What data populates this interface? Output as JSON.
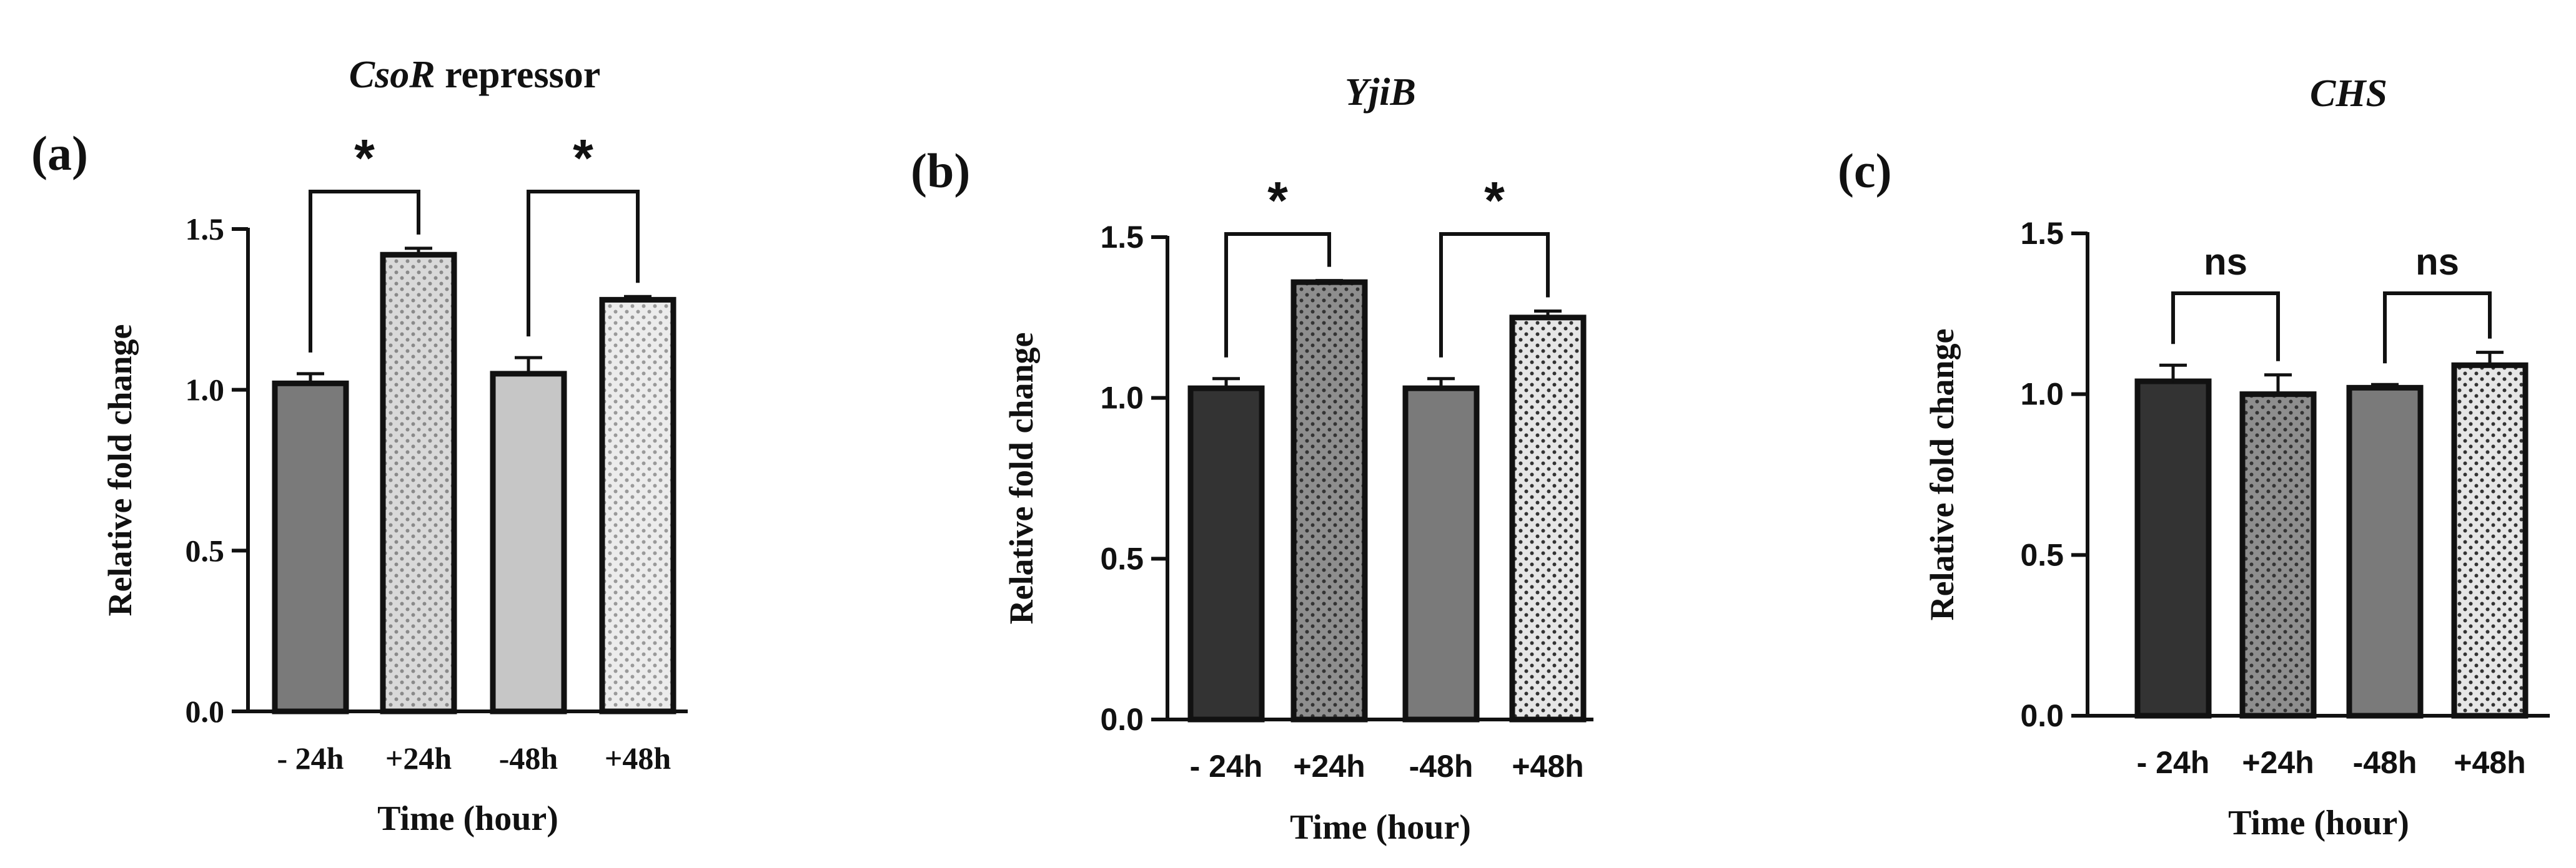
{
  "chart_data": [
    {
      "panel_label": "(a)",
      "type": "bar",
      "title_italic": "CsoR",
      "title_rest": " repressor",
      "xlabel": "Time (hour)",
      "ylabel": "Relative fold change",
      "ylim": [
        0,
        1.5
      ],
      "yticks": [
        "0.0",
        "0.5",
        "1.0",
        "1.5"
      ],
      "categories": [
        "- 24h",
        "+24h",
        "-48h",
        "+48h"
      ],
      "values": [
        1.02,
        1.42,
        1.05,
        1.28
      ],
      "errors": [
        0.03,
        0.02,
        0.05,
        0.01
      ],
      "bar_colors": [
        "#7a7a7a",
        "#d9d9d9",
        "#c6c6c6",
        "#ececec"
      ],
      "dot_colors": [
        "",
        "#8a8a8a",
        "",
        "#9a9a9a"
      ],
      "significance": [
        {
          "from": 0,
          "to": 1,
          "label": "*"
        },
        {
          "from": 2,
          "to": 3,
          "label": "*"
        }
      ]
    },
    {
      "panel_label": "(b)",
      "type": "bar",
      "title_italic": "YjiB",
      "title_rest": "",
      "xlabel": "Time (hour)",
      "ylabel": "Relative fold change",
      "ylim": [
        0,
        1.5
      ],
      "yticks": [
        "0.0",
        "0.5",
        "1.0",
        "1.5"
      ],
      "categories": [
        "- 24h",
        "+24h",
        "-48h",
        "+48h"
      ],
      "values": [
        1.03,
        1.36,
        1.03,
        1.25
      ],
      "errors": [
        0.03,
        0.005,
        0.03,
        0.02
      ],
      "bar_colors": [
        "#333333",
        "#8e8e8e",
        "#7a7a7a",
        "#e6e6e6"
      ],
      "dot_colors": [
        "",
        "#333333",
        "",
        "#333333"
      ],
      "significance": [
        {
          "from": 0,
          "to": 1,
          "label": "*"
        },
        {
          "from": 2,
          "to": 3,
          "label": "*"
        }
      ]
    },
    {
      "panel_label": "(c)",
      "type": "bar",
      "title_italic": "CHS",
      "title_rest": "",
      "xlabel": "Time (hour)",
      "ylabel": "Relative fold change",
      "ylim": [
        0,
        1.5
      ],
      "yticks": [
        "0.0",
        "0.5",
        "1.0",
        "1.5"
      ],
      "categories": [
        "- 24h",
        "+24h",
        "-48h",
        "+48h"
      ],
      "values": [
        1.04,
        1.0,
        1.02,
        1.09
      ],
      "errors": [
        0.05,
        0.06,
        0.01,
        0.04
      ],
      "bar_colors": [
        "#333333",
        "#8e8e8e",
        "#7a7a7a",
        "#e6e6e6"
      ],
      "dot_colors": [
        "",
        "#333333",
        "",
        "#333333"
      ],
      "significance": [
        {
          "from": 0,
          "to": 1,
          "label": "ns"
        },
        {
          "from": 2,
          "to": 3,
          "label": "ns"
        }
      ]
    }
  ]
}
